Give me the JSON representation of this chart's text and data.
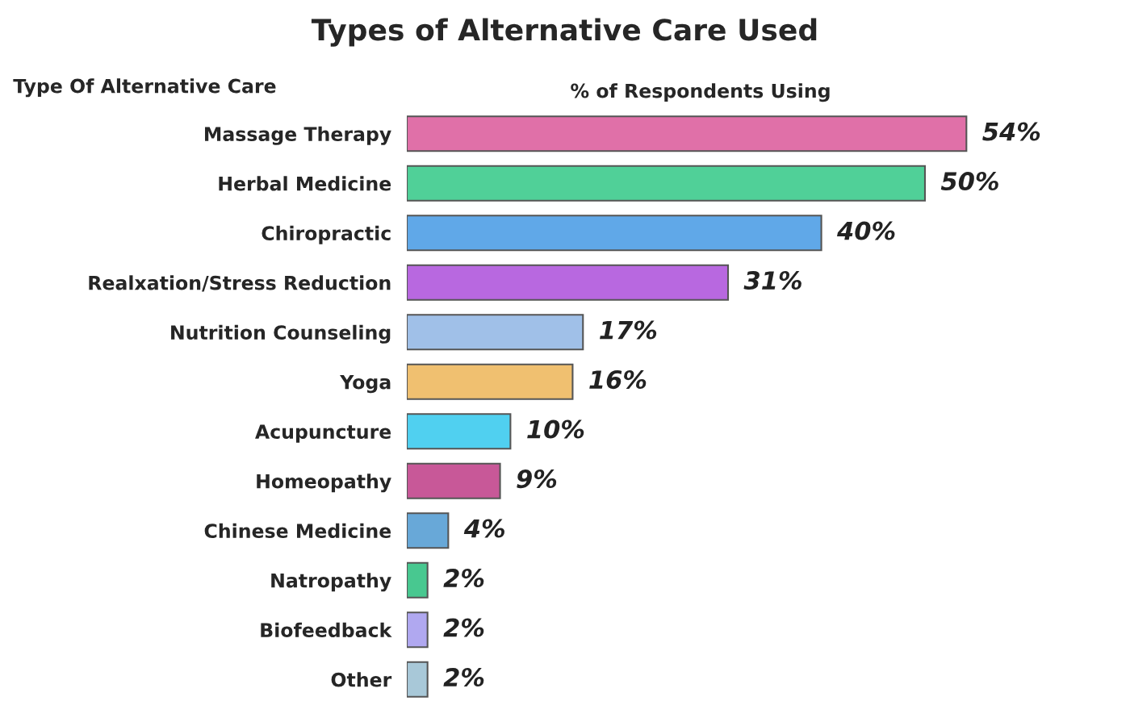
{
  "chart_data": {
    "type": "bar",
    "orientation": "horizontal",
    "title": "Types of Alternative Care Used",
    "ylabel": "Type Of Alternative Care",
    "xlabel": "% of Respondents Using",
    "categories": [
      "Massage Therapy",
      "Herbal Medicine",
      "Chiropractic",
      "Realxation/Stress Reduction",
      "Nutrition Counseling",
      "Yoga",
      "Acupuncture",
      "Homeopathy",
      "Chinese Medicine",
      "Natropathy",
      "Biofeedback",
      "Other"
    ],
    "values": [
      54,
      50,
      40,
      31,
      17,
      16,
      10,
      9,
      4,
      2,
      2,
      2
    ],
    "colors": [
      "#e070a8",
      "#50d098",
      "#60a8e8",
      "#b868e0",
      "#a0c0e8",
      "#f0c070",
      "#50d0f0",
      "#c85898",
      "#68a8d8",
      "#48c890",
      "#b0a8f0",
      "#a8c8d8"
    ],
    "value_labels": [
      "54%",
      "50%",
      "40%",
      "31%",
      "17%",
      "16%",
      "10%",
      "9%",
      "4%",
      "2%",
      "2%",
      "2%"
    ],
    "tick_labels": "y",
    "grid": false,
    "legend": false
  }
}
